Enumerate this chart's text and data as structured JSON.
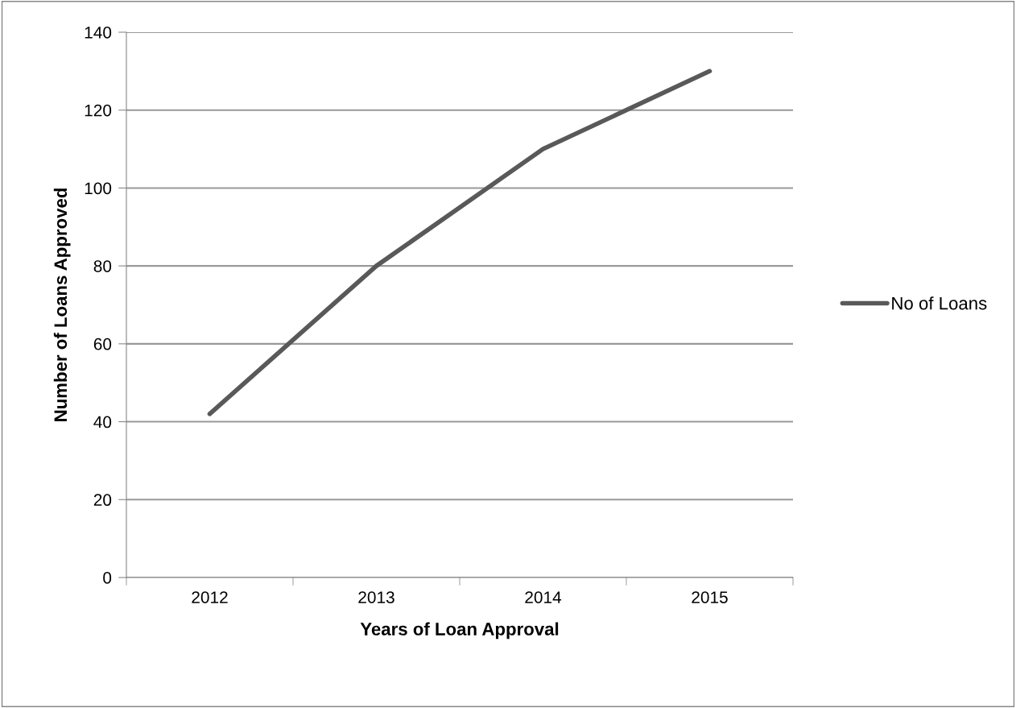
{
  "chart_data": {
    "type": "line",
    "xlabel": "Years of Loan Approval",
    "ylabel": "Number of Loans Approved",
    "categories": [
      "2012",
      "2013",
      "2014",
      "2015"
    ],
    "series": [
      {
        "name": "No of Loans",
        "color": "#595959",
        "values": [
          42,
          80,
          110,
          130
        ]
      }
    ],
    "ylim": [
      0,
      140
    ],
    "yticks": [
      0,
      20,
      40,
      60,
      80,
      100,
      120,
      140
    ],
    "grid": "y",
    "legend": "right",
    "marker": "none",
    "line_style": "solid"
  }
}
